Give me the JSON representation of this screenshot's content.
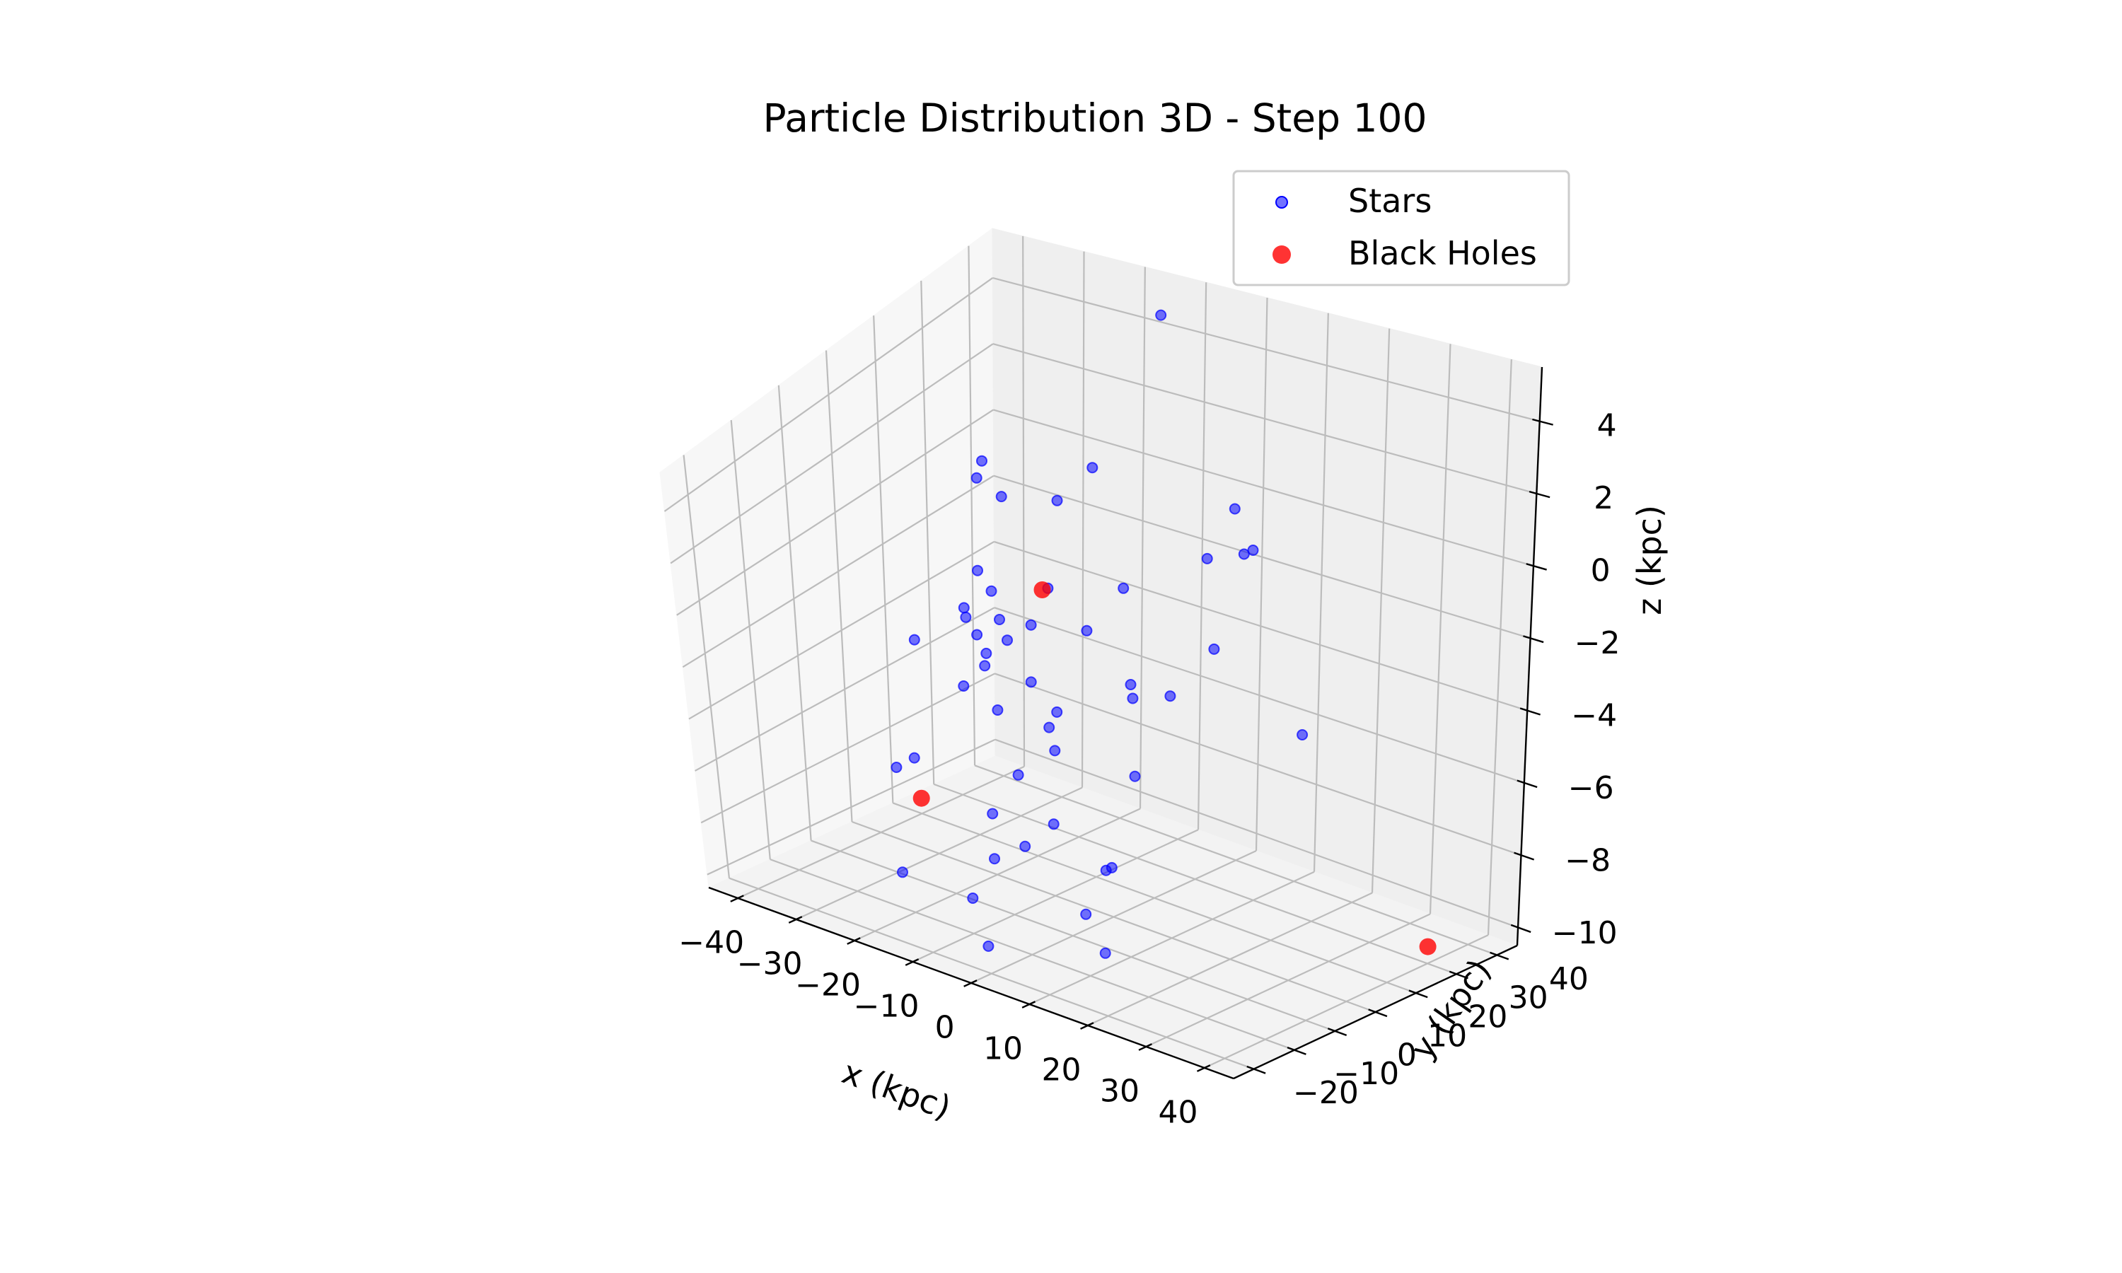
{
  "chart_data": {
    "type": "scatter",
    "projection": "3d",
    "title": "Particle Distribution 3D - Step 100",
    "xlabel": "x (kpc)",
    "ylabel": "y (kpc)",
    "zlabel": "z (kpc)",
    "xlim": [
      -45,
      45
    ],
    "ylim": [
      -25,
      45
    ],
    "zlim": [
      -10.5,
      5.5
    ],
    "xticks": [
      -40,
      -30,
      -20,
      -10,
      0,
      10,
      20,
      30,
      40
    ],
    "yticks": [
      -20,
      -10,
      0,
      10,
      20,
      30,
      40
    ],
    "zticks": [
      -10,
      -8,
      -6,
      -4,
      -2,
      0,
      2,
      4
    ],
    "x_tick_labels": [
      "−40",
      "−30",
      "−20",
      "−10",
      "0",
      "10",
      "20",
      "30",
      "40"
    ],
    "y_tick_labels": [
      "−20",
      "−10",
      "0",
      "10",
      "20",
      "30",
      "40"
    ],
    "z_tick_labels": [
      "−10",
      "−8",
      "−6",
      "−4",
      "−2",
      "0",
      "2",
      "4"
    ],
    "grid": true,
    "legend_position": "top-right",
    "series": [
      {
        "name": "Stars",
        "color": "#0000ff",
        "marker": "circle",
        "alpha": 0.55,
        "points": [
          [
            -14.0,
            6.4,
            3.0
          ],
          [
            -6.0,
            8.0,
            3.2
          ],
          [
            -12.0,
            -1.0,
            4.7
          ],
          [
            -10.0,
            -2.2,
            5.6
          ],
          [
            -10.0,
            -0.2,
            -0.2
          ],
          [
            -5.0,
            -8.0,
            -2.2
          ],
          [
            -7.0,
            -7.2,
            -0.4
          ],
          [
            -16.5,
            6.6,
            -0.4
          ],
          [
            -9.0,
            4.8,
            -2.8
          ],
          [
            -12.6,
            4.6,
            -1.6
          ],
          [
            5.6,
            1.1,
            6.0
          ],
          [
            -8.0,
            4.0,
            -0.7
          ],
          [
            -4.8,
            12.0,
            -1.5
          ],
          [
            6.5,
            6.6,
            -2.0
          ],
          [
            8.0,
            5.0,
            -2.2
          ],
          [
            -6.0,
            5.6,
            -5.0
          ],
          [
            5.0,
            9.0,
            -5.4
          ],
          [
            -10.5,
            10.8,
            -8.2
          ],
          [
            -4.0,
            14.0,
            -9.5
          ],
          [
            -15.0,
            10.0,
            -9.2
          ],
          [
            -13.2,
            0.2,
            -8.8
          ],
          [
            -13.0,
            0.0,
            -7.2
          ],
          [
            -12.0,
            5.0,
            -6.2
          ],
          [
            5.0,
            3.0,
            -8.0
          ],
          [
            4.6,
            -3.0,
            -9.2
          ],
          [
            -5.5,
            15.5,
            -12.4
          ],
          [
            -12.0,
            -4.0,
            -11.5
          ],
          [
            -9.8,
            -10.0,
            -9.2
          ],
          [
            -25.4,
            -5.2,
            -9.8
          ],
          [
            -26.0,
            0.0,
            -6.2
          ],
          [
            -25.0,
            -5.5,
            -6.0
          ],
          [
            -23.0,
            8.0,
            -4.2
          ],
          [
            -20.8,
            6.0,
            -1.2
          ],
          [
            -20.0,
            9.0,
            -3.4
          ],
          [
            -13.0,
            13.8,
            -5.4
          ],
          [
            -11.6,
            13.8,
            -4.8
          ],
          [
            -32.2,
            9.5,
            -3.4
          ],
          [
            -25.2,
            12.0,
            -2.4
          ],
          [
            -28.0,
            18.0,
            -3.7
          ],
          [
            -24.0,
            13.4,
            -0.9
          ],
          [
            29.7,
            -5.0,
            2.2
          ],
          [
            -1.0,
            24.0,
            7.5
          ],
          [
            7.5,
            22.6,
            0.5
          ],
          [
            8.0,
            28.0,
            1.5
          ],
          [
            10.0,
            29.4,
            0.2
          ],
          [
            17.5,
            17.5,
            1.8
          ],
          [
            29.0,
            15.0,
            -3.0
          ],
          [
            0.0,
            14.0,
            0.0
          ],
          [
            5.6,
            16.6,
            -3.4
          ],
          [
            -9.6,
            10.0,
            -0.2
          ]
        ]
      },
      {
        "name": "Black Holes",
        "color": "#ff0000",
        "marker": "circle",
        "alpha": 0.8,
        "points": [
          [
            -9.0,
            8.0,
            0.0
          ],
          [
            -40.0,
            20.0,
            -10.0
          ],
          [
            40.0,
            30.0,
            -10.0
          ]
        ]
      }
    ]
  }
}
